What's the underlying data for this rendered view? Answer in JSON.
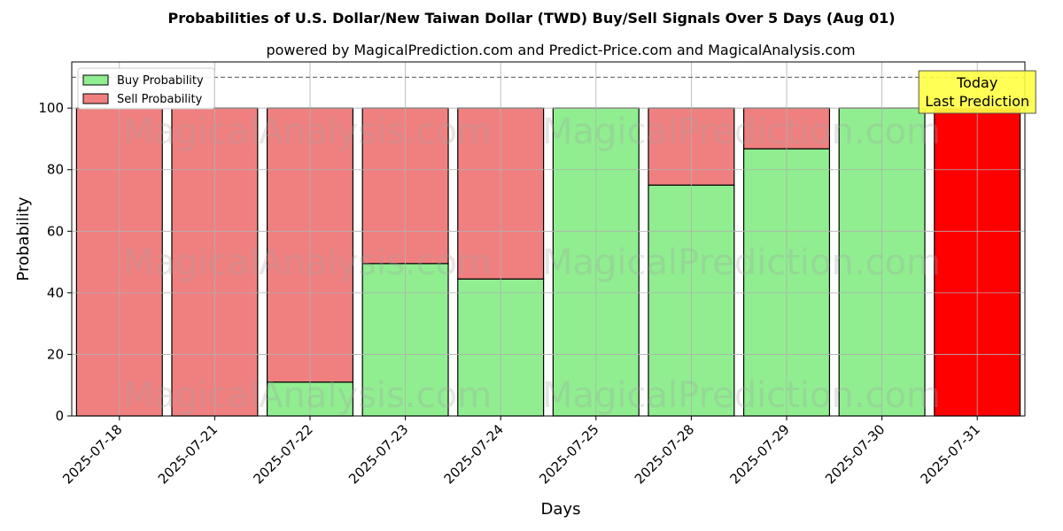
{
  "chart_data": {
    "type": "bar",
    "stacked": true,
    "title": "Probabilities of U.S. Dollar/New Taiwan Dollar (TWD) Buy/Sell Signals Over 5 Days (Aug 01)",
    "subtitle": "powered by MagicalPrediction.com and Predict-Price.com and MagicalAnalysis.com",
    "xlabel": "Days",
    "ylabel": "Probability",
    "ylim": [
      0,
      115
    ],
    "yticks": [
      0,
      20,
      40,
      60,
      80,
      100
    ],
    "grid": true,
    "legend_position": "top-left",
    "threshold_line": 110,
    "categories": [
      "2025-07-18",
      "2025-07-21",
      "2025-07-22",
      "2025-07-23",
      "2025-07-24",
      "2025-07-25",
      "2025-07-28",
      "2025-07-29",
      "2025-07-30",
      "2025-07-31"
    ],
    "series": [
      {
        "name": "Buy Probability",
        "color": "#90ee90",
        "values": [
          0,
          0,
          11,
          49.5,
          44.5,
          100,
          75,
          86.8,
          100,
          0
        ]
      },
      {
        "name": "Sell Probability",
        "color": "#f08080",
        "values": [
          100,
          100,
          89,
          50.5,
          55.5,
          0,
          25,
          13.2,
          0,
          100
        ]
      }
    ],
    "highlight": {
      "index": 9,
      "color": "#ff0000"
    },
    "annotation": {
      "lines": [
        "Today",
        "Last Prediction"
      ],
      "color": "#ffff44"
    },
    "watermarks": [
      "MagicalAnalysis.com",
      "MagicalPrediction.com"
    ]
  }
}
